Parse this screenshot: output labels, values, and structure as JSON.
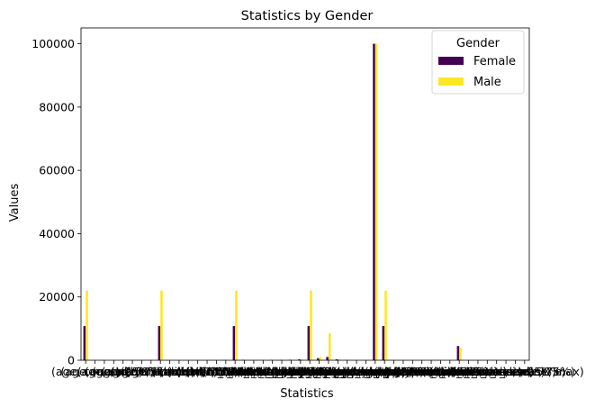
{
  "chart_data": {
    "type": "bar",
    "title": "Statistics by Gender",
    "xlabel": "Statistics",
    "ylabel": "Values",
    "ylim": [
      0,
      105000
    ],
    "yticks": [
      0,
      20000,
      40000,
      60000,
      80000,
      100000
    ],
    "grid": false,
    "legend": {
      "title": "Gender",
      "placement": "top-right"
    },
    "x_tick_labels_overlapping": true,
    "categories": [
      "(age, count)",
      "(age, mean)",
      "(age, std)",
      "(age, min)",
      "(age, 25%)",
      "(age, 50%)",
      "(age, 75%)",
      "(age, max)",
      "(bmi, count)",
      "(bmi, mean)",
      "(bmi, std)",
      "(bmi, min)",
      "(bmi, 25%)",
      "(bmi, 50%)",
      "(bmi, 75%)",
      "(bmi, max)",
      "(HbA1c_level, count)",
      "(HbA1c_level, mean)",
      "(HbA1c_level, std)",
      "(HbA1c_level, min)",
      "(HbA1c_level, 25%)",
      "(HbA1c_level, 50%)",
      "(HbA1c_level, 75%)",
      "(HbA1c_level, max)",
      "(blood_glucose_level, count)",
      "(blood_glucose_level, mean)",
      "(blood_glucose_level, std)",
      "(blood_glucose_level, min)",
      "(blood_glucose_level, 25%)",
      "(blood_glucose_level, 50%)",
      "(blood_glucose_level, 75%)",
      "(blood_glucose_level, max)",
      "(hypertension, count)",
      "(hypertension, mean)",
      "(hypertension, std)",
      "(hypertension, min)",
      "(hypertension, 25%)",
      "(hypertension, 50%)",
      "(hypertension, 75%)",
      "(hypertension, max)",
      "(heart_disease, count)",
      "(heart_disease, mean)",
      "(heart_disease, std)",
      "(heart_disease, min)",
      "(heart_disease, 25%)",
      "(heart_disease, 50%)",
      "(heart_disease, 75%)",
      "(heart_disease, max)"
    ],
    "series": [
      {
        "name": "Female",
        "color": "#440154",
        "values": [
          10800,
          42,
          22,
          0.08,
          24,
          43,
          60,
          80,
          10800,
          27,
          6.5,
          10,
          23,
          27,
          30,
          95,
          10800,
          150,
          40,
          80,
          130,
          140,
          159,
          300,
          10800,
          650,
          1050,
          300,
          90,
          5,
          6,
          100000,
          10800,
          0.07,
          0.26,
          0,
          0,
          0,
          0,
          1,
          4500,
          0.04,
          0.19,
          0,
          0,
          0,
          0,
          1
        ]
      },
      {
        "name": "Male",
        "color": "#fde725",
        "values": [
          22000,
          41,
          23,
          0.08,
          23,
          42,
          58,
          80,
          22000,
          27,
          6.8,
          10,
          23,
          27,
          29,
          90,
          22000,
          140,
          41,
          80,
          100,
          140,
          159,
          300,
          22000,
          1000,
          8500,
          300,
          90,
          5,
          6,
          100000,
          22000,
          0.08,
          0.27,
          0,
          0,
          0,
          0,
          1,
          4000,
          0.05,
          0.22,
          0,
          0,
          0,
          0,
          1
        ]
      }
    ]
  }
}
